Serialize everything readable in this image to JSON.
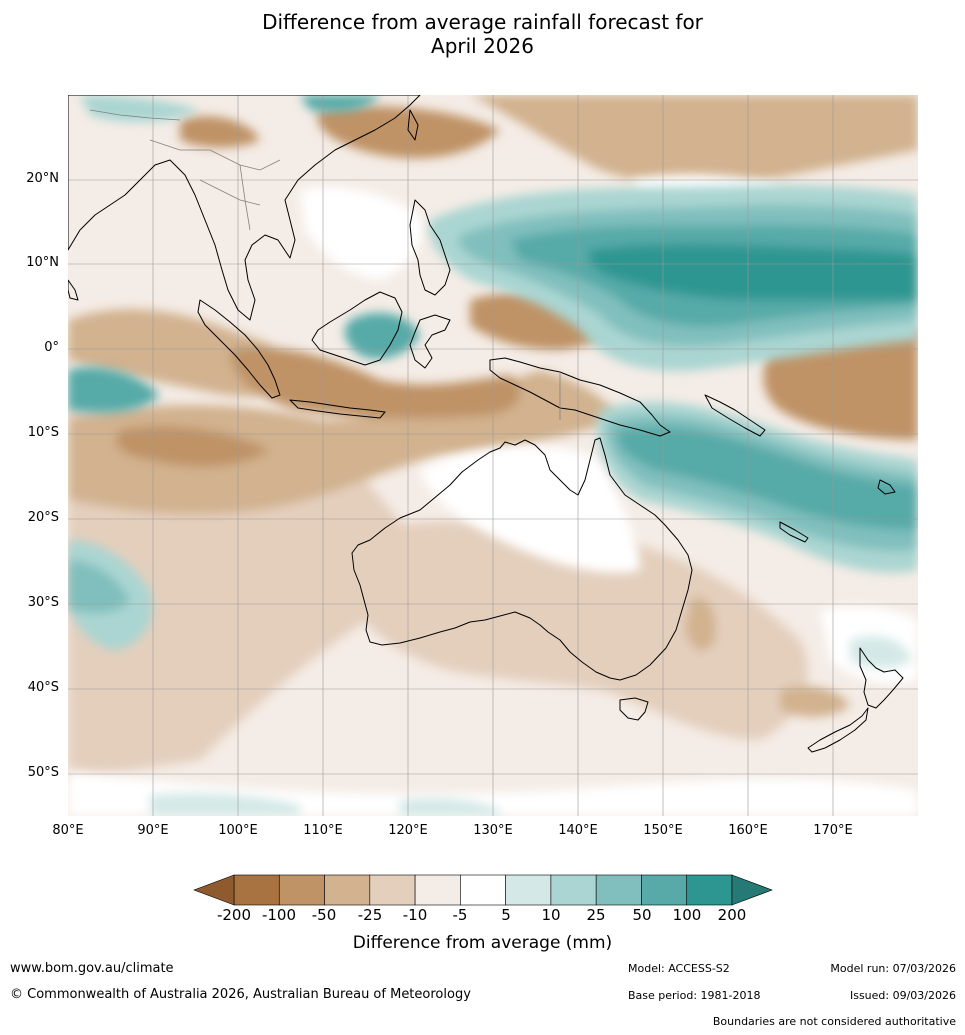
{
  "title_line1": "Difference from average rainfall forecast for",
  "title_line2": "April 2026",
  "map": {
    "lon_range": [
      80,
      180
    ],
    "lat_range": [
      -55,
      30
    ],
    "lat_labels": [
      {
        "value": 20,
        "text": "20°N"
      },
      {
        "value": 10,
        "text": "10°N"
      },
      {
        "value": 0,
        "text": "0°"
      },
      {
        "value": -10,
        "text": "10°S"
      },
      {
        "value": -20,
        "text": "20°S"
      },
      {
        "value": -30,
        "text": "30°S"
      },
      {
        "value": -40,
        "text": "40°S"
      },
      {
        "value": -50,
        "text": "50°S"
      }
    ],
    "lon_labels": [
      {
        "value": 80,
        "text": "80°E"
      },
      {
        "value": 90,
        "text": "90°E"
      },
      {
        "value": 100,
        "text": "100°E"
      },
      {
        "value": 110,
        "text": "110°E"
      },
      {
        "value": 120,
        "text": "120°E"
      },
      {
        "value": 130,
        "text": "130°E"
      },
      {
        "value": 140,
        "text": "140°E"
      },
      {
        "value": 150,
        "text": "150°E"
      },
      {
        "value": 160,
        "text": "160°E"
      },
      {
        "value": 170,
        "text": "170°E"
      }
    ]
  },
  "colorbar": {
    "ticks": [
      "-200",
      "-100",
      "-50",
      "-25",
      "-10",
      "-5",
      "5",
      "10",
      "25",
      "50",
      "100",
      "200"
    ],
    "colors": [
      "#a87340",
      "#bf9366",
      "#d2b28f",
      "#e4cfbd",
      "#f4ece6",
      "#ffffff",
      "#d4e9e7",
      "#aad5d2",
      "#80bfbd",
      "#57aaa8",
      "#2e9691"
    ],
    "under_color": "#8f5a2e",
    "over_color": "#267a76",
    "label": "Difference from average (mm)"
  },
  "footer": {
    "website": "www.bom.gov.au/climate",
    "copyright": "© Commonwealth of Australia 2026, Australian Bureau of Meteorology",
    "model": "Model: ACCESS-S2",
    "base_period": "Base period: 1981-2018",
    "model_run": "Model run: 07/03/2026",
    "issued": "Issued: 09/03/2026",
    "disclaimer": "Boundaries are not considered authoritative"
  }
}
